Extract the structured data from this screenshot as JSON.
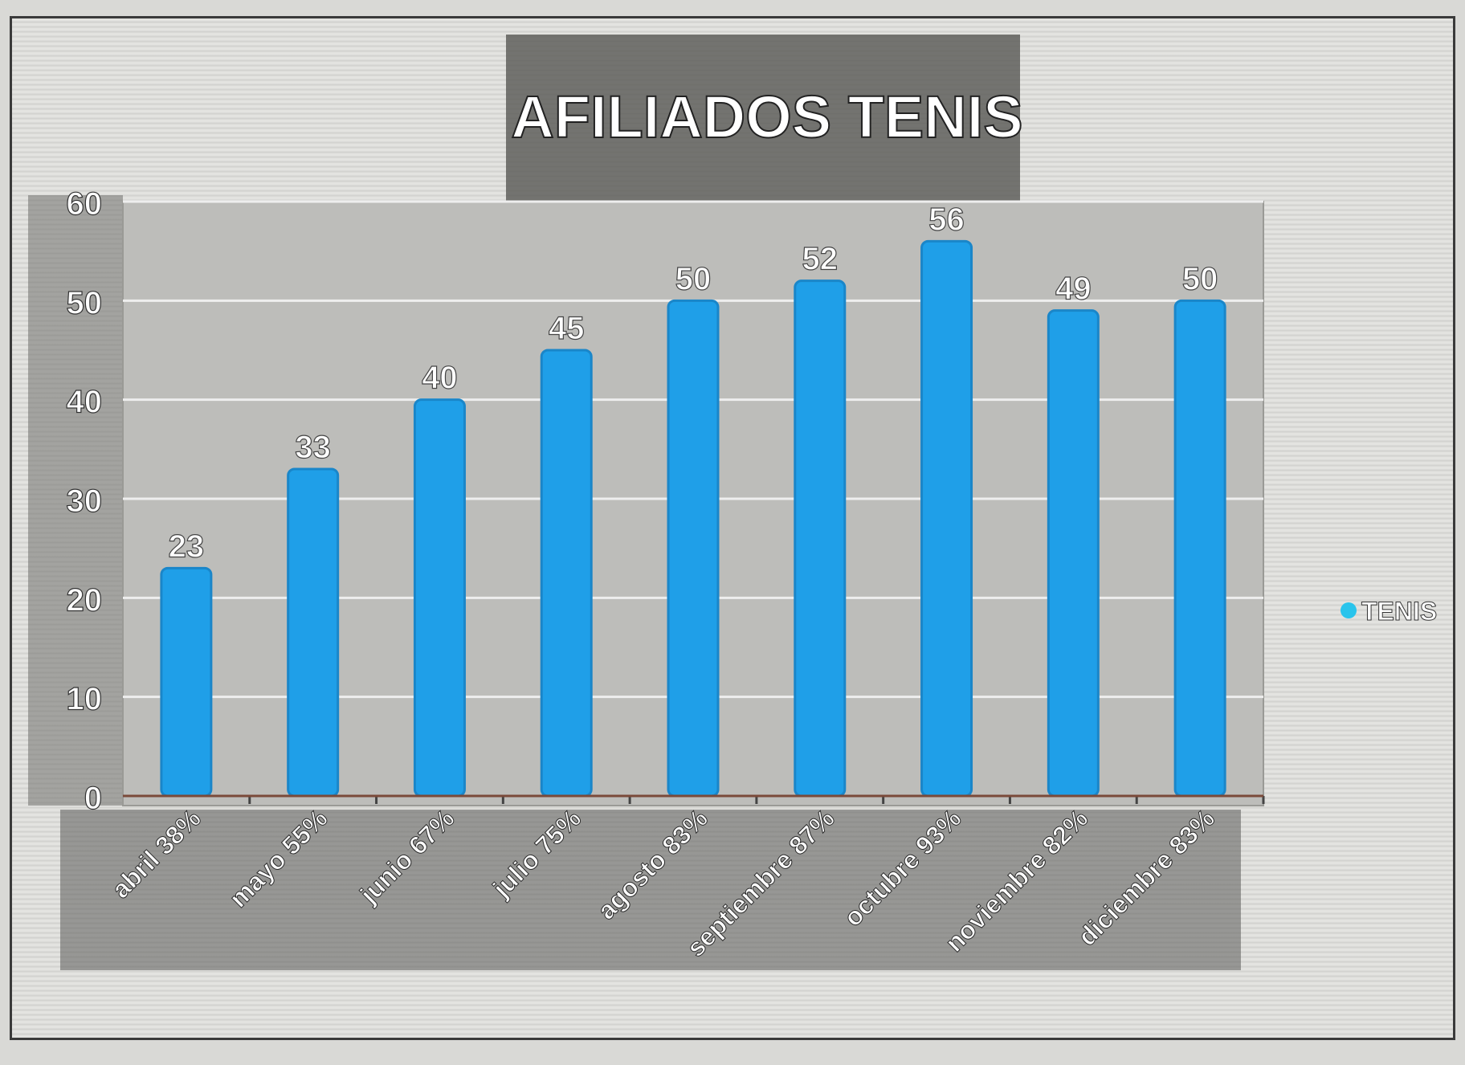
{
  "chart_data": {
    "type": "bar",
    "title": "AFILIADOS TENIS",
    "categories": [
      "abril 38%",
      "mayo 55%",
      "junio 67%",
      "julio 75%",
      "agosto 83%",
      "septiembre 87%",
      "octubre 93%",
      "noviembre 82%",
      "diciembre 83%"
    ],
    "series": [
      {
        "name": "TENIS",
        "values": [
          23,
          33,
          40,
          45,
          50,
          52,
          56,
          49,
          50
        ]
      }
    ],
    "data_labels": [
      "23",
      "33",
      "40",
      "45",
      "50",
      "52",
      "56",
      "49",
      "50"
    ],
    "ylim": [
      0,
      60
    ],
    "yticks": [
      "0",
      "10",
      "20",
      "30",
      "40",
      "50",
      "60"
    ],
    "xlabel": "",
    "ylabel": "",
    "grid": true,
    "legend_position": "right",
    "colors": {
      "bar": "#1f9fe8",
      "bar_edge": "#1a86c9",
      "legend_marker": "#29c4ec",
      "title_band": "#5f5f5c",
      "plot_bg": "#bdbdba",
      "grid": "#eeeeee"
    }
  }
}
